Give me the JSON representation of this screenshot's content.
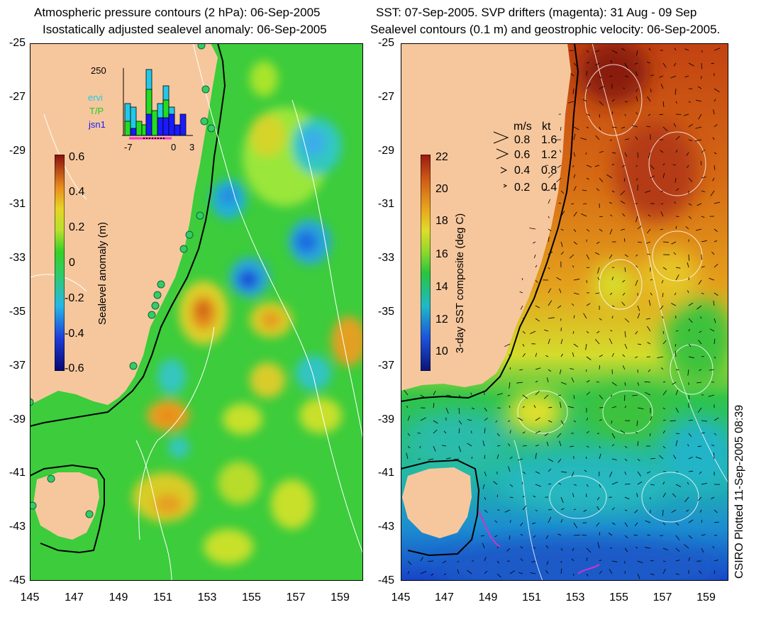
{
  "left_panel": {
    "title_line1": "Atmospheric pressure contours (2 hPa): 06-Sep-2005",
    "title_line2": "Isostatically adjusted sealevel anomaly: 06-Sep-2005",
    "colorbar": {
      "label": "Sealevel anomaly (m)",
      "ticks": [
        "0.6",
        "0.4",
        "0.2",
        "0",
        "-0.2",
        "-0.4",
        "-0.6"
      ]
    },
    "inset": {
      "ymax_label": "250",
      "x_ticks": [
        "-7",
        "0",
        "3"
      ],
      "legend": [
        {
          "name": "ervi",
          "color": "#22c8e8"
        },
        {
          "name": "T/P",
          "color": "#22dd22"
        },
        {
          "name": "jsn1",
          "color": "#1a1aff"
        }
      ]
    }
  },
  "right_panel": {
    "title_line1": "SST: 07-Sep-2005. SVP drifters (magenta): 31 Aug - 09 Sep",
    "title_line2": "Sealevel contours (0.1 m) and geostrophic velocity: 06-Sep-2005.",
    "colorbar": {
      "label": "3-day SST composite (deg C)",
      "ticks": [
        "22",
        "20",
        "18",
        "16",
        "14",
        "12",
        "10"
      ]
    },
    "velocity_legend": {
      "header_ms": "m/s",
      "header_kt": "kt",
      "rows": [
        {
          "ms": "0.8",
          "kt": "1.6"
        },
        {
          "ms": "0.6",
          "kt": "1.2"
        },
        {
          "ms": "0.4",
          "kt": "0.8"
        },
        {
          "ms": "0.2",
          "kt": "0.4"
        }
      ]
    }
  },
  "axes": {
    "y_ticks": [
      "-25",
      "-27",
      "-29",
      "-31",
      "-33",
      "-35",
      "-37",
      "-39",
      "-41",
      "-43",
      "-45"
    ],
    "x_ticks": [
      "145",
      "147",
      "149",
      "151",
      "153",
      "155",
      "157",
      "159"
    ]
  },
  "credit": "CSIRO Plotted 11-Sep-2005 08:39",
  "colors": {
    "land": "#f6c79d",
    "anomaly_base": "#33cc33",
    "coast": "#000000"
  }
}
